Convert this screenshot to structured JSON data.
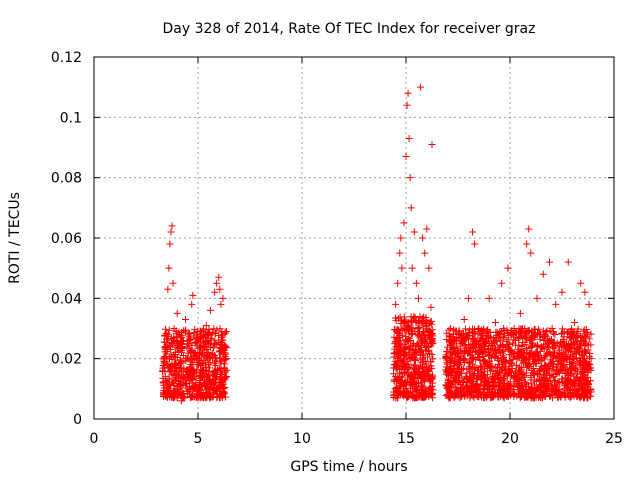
{
  "chart_data": {
    "type": "scatter",
    "title": "Day 328 of 2014, Rate Of TEC Index for receiver graz",
    "xlabel": "GPS time / hours",
    "ylabel": "ROTI / TECUs",
    "xlim": [
      0,
      25
    ],
    "ylim": [
      0,
      0.12
    ],
    "x_ticks": [
      0,
      5,
      10,
      15,
      20,
      25
    ],
    "x_tick_labels": [
      "0",
      "5",
      "10",
      "15",
      "20",
      "25"
    ],
    "y_ticks": [
      0,
      0.02,
      0.04,
      0.06,
      0.08,
      0.1,
      0.12
    ],
    "y_tick_labels": [
      "0",
      "0.02",
      "0.04",
      "0.06",
      "0.08",
      "0.1",
      "0.12"
    ],
    "grid": true,
    "legend": "none",
    "marker": "plus",
    "color": "#ff0000",
    "series": [
      {
        "values": [
          [
            3.3,
            0.016
          ],
          [
            3.35,
            0.012
          ],
          [
            3.4,
            0.02
          ],
          [
            3.45,
            0.024
          ],
          [
            3.5,
            0.018
          ],
          [
            3.55,
            0.043
          ],
          [
            3.6,
            0.05
          ],
          [
            3.65,
            0.058
          ],
          [
            3.7,
            0.062
          ],
          [
            3.75,
            0.064
          ],
          [
            3.8,
            0.045
          ],
          [
            3.85,
            0.03
          ],
          [
            3.9,
            0.022
          ],
          [
            3.95,
            0.015
          ],
          [
            4.0,
            0.035
          ],
          [
            4.1,
            0.028
          ],
          [
            4.2,
            0.019
          ],
          [
            4.3,
            0.014
          ],
          [
            4.4,
            0.033
          ],
          [
            4.5,
            0.025
          ],
          [
            4.6,
            0.017
          ],
          [
            4.7,
            0.038
          ],
          [
            4.75,
            0.041
          ],
          [
            4.8,
            0.022
          ],
          [
            4.9,
            0.012
          ],
          [
            5.0,
            0.02
          ],
          [
            5.1,
            0.029
          ],
          [
            5.2,
            0.016
          ],
          [
            5.3,
            0.024
          ],
          [
            5.4,
            0.031
          ],
          [
            5.5,
            0.018
          ],
          [
            5.6,
            0.036
          ],
          [
            5.7,
            0.02
          ],
          [
            5.8,
            0.042
          ],
          [
            5.9,
            0.045
          ],
          [
            6.0,
            0.047
          ],
          [
            6.05,
            0.043
          ],
          [
            6.1,
            0.038
          ],
          [
            6.15,
            0.027
          ],
          [
            6.2,
            0.04
          ],
          [
            6.25,
            0.017
          ],
          [
            6.3,
            0.013
          ],
          [
            3.8,
            0.008
          ],
          [
            4.2,
            0.006
          ],
          [
            4.6,
            0.009
          ],
          [
            5.1,
            0.007
          ],
          [
            5.5,
            0.01
          ],
          [
            6.0,
            0.011
          ],
          [
            14.4,
            0.015
          ],
          [
            14.5,
            0.038
          ],
          [
            14.6,
            0.045
          ],
          [
            14.7,
            0.055
          ],
          [
            14.75,
            0.06
          ],
          [
            14.8,
            0.05
          ],
          [
            14.9,
            0.065
          ],
          [
            15.0,
            0.087
          ],
          [
            15.05,
            0.104
          ],
          [
            15.1,
            0.108
          ],
          [
            15.15,
            0.093
          ],
          [
            15.2,
            0.08
          ],
          [
            15.25,
            0.07
          ],
          [
            15.3,
            0.05
          ],
          [
            15.4,
            0.062
          ],
          [
            15.5,
            0.045
          ],
          [
            15.6,
            0.04
          ],
          [
            15.7,
            0.11
          ],
          [
            15.8,
            0.06
          ],
          [
            15.9,
            0.055
          ],
          [
            16.0,
            0.063
          ],
          [
            16.1,
            0.05
          ],
          [
            16.2,
            0.037
          ],
          [
            16.3,
            0.025
          ],
          [
            14.6,
            0.02
          ],
          [
            15.0,
            0.012
          ],
          [
            15.4,
            0.018
          ],
          [
            15.8,
            0.01
          ],
          [
            16.1,
            0.016
          ],
          [
            16.25,
            0.091
          ],
          [
            17.0,
            0.012
          ],
          [
            17.2,
            0.02
          ],
          [
            17.5,
            0.028
          ],
          [
            17.8,
            0.033
          ],
          [
            18.0,
            0.04
          ],
          [
            18.2,
            0.062
          ],
          [
            18.3,
            0.058
          ],
          [
            18.5,
            0.03
          ],
          [
            18.8,
            0.025
          ],
          [
            19.0,
            0.04
          ],
          [
            19.3,
            0.032
          ],
          [
            19.6,
            0.045
          ],
          [
            19.9,
            0.05
          ],
          [
            20.2,
            0.03
          ],
          [
            20.5,
            0.035
          ],
          [
            20.8,
            0.058
          ],
          [
            20.9,
            0.063
          ],
          [
            21.0,
            0.055
          ],
          [
            21.3,
            0.04
          ],
          [
            21.6,
            0.048
          ],
          [
            21.9,
            0.052
          ],
          [
            22.2,
            0.038
          ],
          [
            22.5,
            0.042
          ],
          [
            22.8,
            0.052
          ],
          [
            23.1,
            0.032
          ],
          [
            23.4,
            0.045
          ],
          [
            23.6,
            0.042
          ],
          [
            23.8,
            0.038
          ],
          [
            23.9,
            0.02
          ],
          [
            17.4,
            0.01
          ],
          [
            18.6,
            0.008
          ],
          [
            19.5,
            0.012
          ],
          [
            20.6,
            0.009
          ],
          [
            21.7,
            0.011
          ],
          [
            22.9,
            0.01
          ],
          [
            23.7,
            0.009
          ]
        ]
      }
    ],
    "dense_clusters": [
      {
        "x_range": [
          3.3,
          6.4
        ],
        "y_range": [
          0.007,
          0.03
        ],
        "count": 650
      },
      {
        "x_range": [
          14.4,
          16.3
        ],
        "y_range": [
          0.007,
          0.034
        ],
        "count": 500
      },
      {
        "x_range": [
          16.9,
          23.9
        ],
        "y_range": [
          0.007,
          0.03
        ],
        "count": 1500
      }
    ]
  }
}
